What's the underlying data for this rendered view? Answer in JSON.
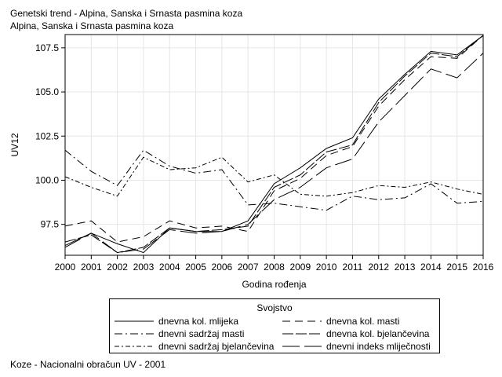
{
  "chart_data": {
    "type": "line",
    "title": "Genetski trend - Alpina, Sanska i Srnasta pasmina koza",
    "subtitle": "Alpina, Sanska i Srnasta pasmina koza",
    "xlabel": "Godina rođenja",
    "ylabel": "UV12",
    "x": [
      2000,
      2001,
      2002,
      2003,
      2004,
      2005,
      2006,
      2007,
      2008,
      2009,
      2010,
      2011,
      2012,
      2013,
      2014,
      2015,
      2016
    ],
    "xlim": [
      2000,
      2016
    ],
    "ylim": [
      95.75,
      108.25
    ],
    "yticks": [
      97.5,
      100.0,
      102.5,
      105.0,
      107.5
    ],
    "ytick_labels": [
      "97.5",
      "100.0",
      "102.5",
      "105.0",
      "107.5"
    ],
    "grid": true,
    "legend_title": "Svojstvo",
    "legend_position": "bottom",
    "series": [
      {
        "name": "dnevna kol. mlijeka",
        "dash": "",
        "values": [
          96.3,
          97.0,
          96.4,
          95.9,
          97.3,
          97.1,
          97.1,
          97.7,
          99.8,
          100.7,
          101.8,
          102.4,
          104.6,
          106.0,
          107.3,
          107.1,
          108.2
        ]
      },
      {
        "name": "dnevna kol. masti",
        "dash": "10 6",
        "values": [
          97.4,
          97.7,
          96.5,
          96.8,
          97.7,
          97.3,
          97.4,
          97.1,
          99.4,
          100.1,
          101.4,
          101.9,
          104.2,
          105.7,
          107.0,
          106.9,
          108.2
        ]
      },
      {
        "name": "dnevni sadržaj masti",
        "dash": "10 4 2 4",
        "values": [
          101.7,
          100.5,
          99.7,
          101.7,
          100.8,
          100.4,
          100.6,
          98.6,
          98.7,
          98.5,
          98.3,
          99.1,
          98.9,
          99.0,
          99.8,
          98.7,
          98.8
        ]
      },
      {
        "name": "dnevna kol. bjelančevina",
        "dash": "14 3",
        "values": [
          96.5,
          96.9,
          95.9,
          96.2,
          97.3,
          97.1,
          97.2,
          97.4,
          99.6,
          100.3,
          101.6,
          102.0,
          104.4,
          105.9,
          107.2,
          107.0,
          108.2
        ]
      },
      {
        "name": "dnevni sadržaj bjelančevina",
        "dash": "6 3 2 3",
        "values": [
          100.2,
          99.6,
          99.1,
          101.3,
          100.6,
          100.7,
          101.3,
          99.9,
          100.3,
          99.2,
          99.1,
          99.3,
          99.7,
          99.6,
          99.9,
          99.5,
          99.2
        ]
      },
      {
        "name": "dnevni indeks mliječnosti",
        "dash": "22 6",
        "values": [
          96.2,
          97.0,
          95.9,
          96.1,
          97.2,
          97.0,
          97.1,
          97.5,
          98.9,
          99.6,
          100.7,
          101.2,
          103.3,
          104.8,
          106.3,
          105.8,
          107.2
        ]
      }
    ]
  },
  "footnote": "Koze - Nacionalni obračun UV - 2001"
}
